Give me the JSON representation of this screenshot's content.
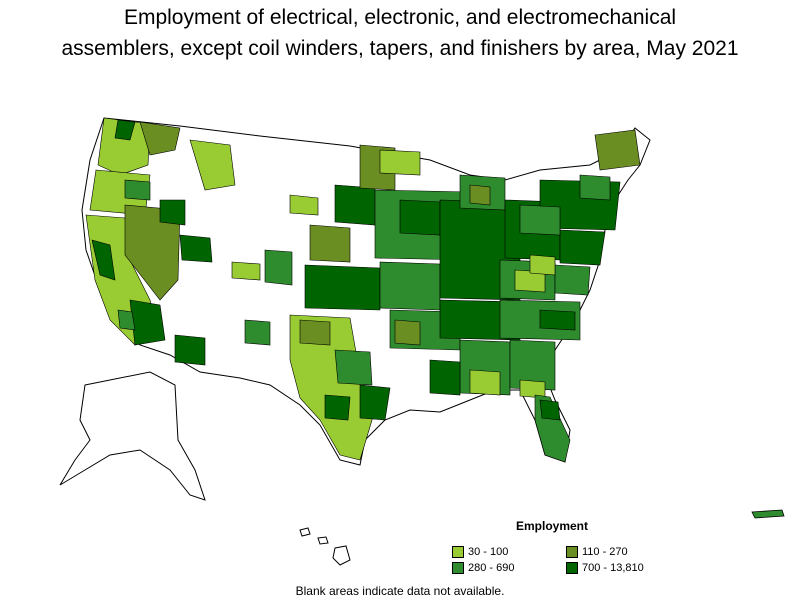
{
  "title": {
    "line1": "Employment of electrical, electronic, and electromechanical",
    "line2": "assemblers, except coil winders, tapers, and finishers by area, May 2021"
  },
  "legend": {
    "title": "Employment",
    "items": [
      {
        "label": "30 - 100",
        "color": "#99cc33"
      },
      {
        "label": "110 - 270",
        "color": "#6b8e23"
      },
      {
        "label": "280 - 690",
        "color": "#2e8b2e"
      },
      {
        "label": "700 - 13,810",
        "color": "#006400"
      }
    ]
  },
  "note": "Blank areas indicate data not available."
}
